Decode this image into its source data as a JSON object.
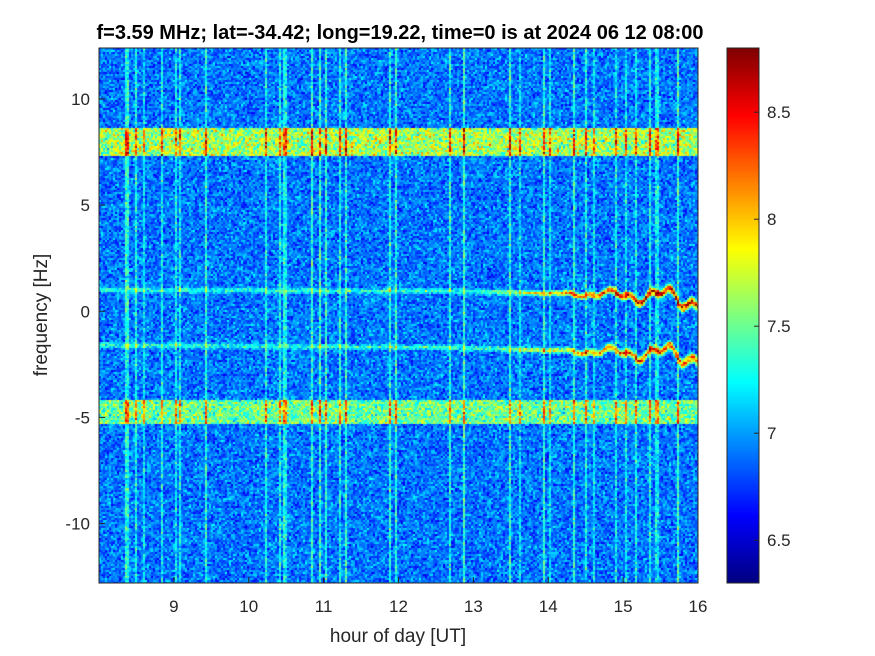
{
  "chart_data": {
    "type": "heatmap",
    "title": "f=3.59 MHz;  lat=-34.42; long=19.22, time=0 is at 2024 06 12 08:00",
    "xlabel": "hour of day [UT]",
    "ylabel": "frequency [Hz]",
    "xlim": [
      8,
      16
    ],
    "ylim": [
      -12.8,
      12.4
    ],
    "xticks": [
      9,
      10,
      11,
      12,
      13,
      14,
      15,
      16
    ],
    "xtick_labels": [
      "9",
      "10",
      "11",
      "12",
      "13",
      "14",
      "15",
      "16"
    ],
    "yticks": [
      -10,
      -5,
      0,
      5,
      10
    ],
    "ytick_labels": [
      "-10",
      "-5",
      "0",
      "5",
      "10"
    ],
    "colorbar": {
      "range": [
        6.3,
        8.8
      ],
      "ticks": [
        6.5,
        7,
        7.5,
        8,
        8.5
      ],
      "tick_labels": [
        "6.5",
        "7",
        "7.5",
        "8",
        "8.5"
      ],
      "colormap": "jet"
    },
    "features": [
      {
        "feature": "noise band",
        "freq_hz": [
          7.3,
          8.6
        ],
        "x": [
          8,
          16
        ],
        "level": 7.9
      },
      {
        "feature": "noise band",
        "freq_hz": [
          -5.3,
          -4.2
        ],
        "x": [
          8,
          16
        ],
        "level": 7.7
      },
      {
        "feature": "doppler trace",
        "x": [
          8,
          12.6,
          14.5,
          15.6,
          16
        ],
        "freq_hz": [
          1.0,
          0.95,
          0.8,
          0.7,
          0.5
        ],
        "level": 8.3
      },
      {
        "feature": "doppler trace",
        "x": [
          8,
          12.6,
          14.5,
          15.6,
          16
        ],
        "freq_hz": [
          -1.6,
          -1.7,
          -1.9,
          -2.0,
          -2.1
        ],
        "level": 8.0
      }
    ],
    "background_level": 6.9,
    "grid": false
  }
}
